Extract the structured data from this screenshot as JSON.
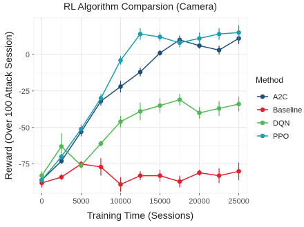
{
  "chart_data": {
    "type": "line",
    "title": "RL Algorithm Comparsion (Camera)",
    "xlabel": "Training Time (Sessions)",
    "ylabel": "Reward (Over 100 Attack Session)",
    "xlim": [
      -1000,
      26000
    ],
    "ylim": [
      -95,
      25
    ],
    "x_ticks": [
      0,
      5000,
      10000,
      15000,
      20000,
      25000
    ],
    "y_ticks": [
      -75,
      -50,
      -25,
      0
    ],
    "grid": true,
    "legend": {
      "title": "Method",
      "placement": "right"
    },
    "x": [
      0,
      2500,
      5000,
      7500,
      10000,
      12500,
      15000,
      17500,
      20000,
      22500,
      25000
    ],
    "series": [
      {
        "name": "A2C",
        "color": "#1f4e79",
        "values": [
          -86,
          -73,
          -53,
          -32,
          -22,
          -12,
          1,
          10,
          6,
          3,
          11
        ],
        "errors": [
          2,
          2,
          3,
          3,
          4,
          3,
          2,
          3,
          2,
          3,
          4
        ]
      },
      {
        "name": "Baseline",
        "color": "#e2202b",
        "values": [
          -88,
          -84,
          -75,
          -77,
          -89,
          -83,
          -83,
          -87,
          -81,
          -83,
          -80
        ],
        "errors": [
          3,
          2,
          2,
          6,
          5,
          3,
          4,
          4,
          2,
          5,
          6
        ]
      },
      {
        "name": "DQN",
        "color": "#4fba52",
        "values": [
          -83,
          -63,
          -76,
          -61,
          -46,
          -39,
          -35,
          -31,
          -40,
          -37,
          -34
        ],
        "errors": [
          3,
          9,
          2,
          2,
          4,
          6,
          5,
          4,
          4,
          5,
          5
        ]
      },
      {
        "name": "PPO",
        "color": "#1a9db3",
        "values": [
          -86,
          -70,
          -51,
          -30,
          -4,
          14,
          12,
          8,
          11,
          14,
          15
        ],
        "errors": [
          2,
          2,
          3,
          3,
          3,
          4,
          3,
          3,
          4,
          4,
          5
        ]
      }
    ]
  }
}
